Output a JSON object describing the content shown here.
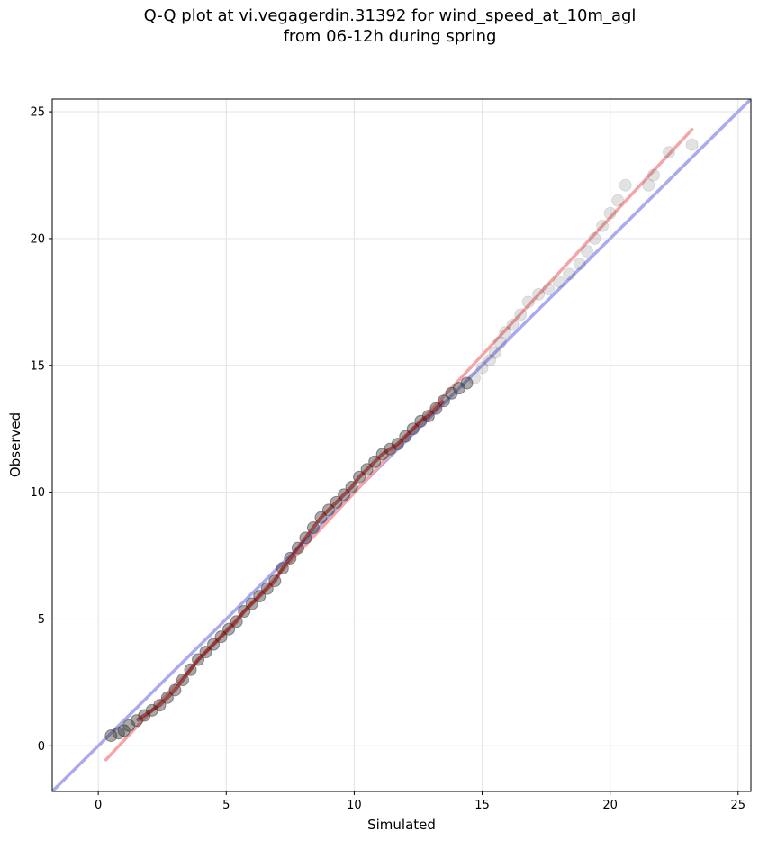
{
  "chart_data": {
    "type": "scatter",
    "title_line1": "Q-Q plot at vi.vegagerdin.31392 for wind_speed_at_10m_agl",
    "title_line2": "from 06-12h during spring",
    "xlabel": "Simulated",
    "ylabel": "Observed",
    "xlim": [
      -1.8,
      25.5
    ],
    "ylim": [
      -1.8,
      25.5
    ],
    "xticks": [
      0,
      5,
      10,
      15,
      20,
      25
    ],
    "yticks": [
      0,
      5,
      10,
      15,
      20,
      25
    ],
    "grid": true,
    "colors": {
      "points": "#333333",
      "identity_line": "#aaaaf0",
      "fit_line": "#f4a6a6",
      "dense_core": "#8b0000"
    },
    "identity_line": {
      "x": [
        -1.8,
        25.5
      ],
      "y": [
        -1.8,
        25.5
      ]
    },
    "fit_line": {
      "x": [
        0.3,
        23.2
      ],
      "y": [
        -0.55,
        24.3
      ]
    },
    "quantile_points": [
      [
        0.5,
        0.4
      ],
      [
        0.8,
        0.5
      ],
      [
        1.0,
        0.6
      ],
      [
        1.2,
        0.8
      ],
      [
        1.5,
        1.0
      ],
      [
        1.8,
        1.2
      ],
      [
        2.1,
        1.4
      ],
      [
        2.4,
        1.6
      ],
      [
        2.7,
        1.9
      ],
      [
        3.0,
        2.2
      ],
      [
        3.3,
        2.6
      ],
      [
        3.6,
        3.0
      ],
      [
        3.9,
        3.4
      ],
      [
        4.2,
        3.7
      ],
      [
        4.5,
        4.0
      ],
      [
        4.8,
        4.3
      ],
      [
        5.1,
        4.6
      ],
      [
        5.4,
        4.9
      ],
      [
        5.7,
        5.3
      ],
      [
        6.0,
        5.6
      ],
      [
        6.3,
        5.9
      ],
      [
        6.6,
        6.2
      ],
      [
        6.9,
        6.5
      ],
      [
        7.2,
        7.0
      ],
      [
        7.5,
        7.4
      ],
      [
        7.8,
        7.8
      ],
      [
        8.1,
        8.2
      ],
      [
        8.4,
        8.6
      ],
      [
        8.7,
        9.0
      ],
      [
        9.0,
        9.3
      ],
      [
        9.3,
        9.6
      ],
      [
        9.6,
        9.9
      ],
      [
        9.9,
        10.2
      ],
      [
        10.2,
        10.6
      ],
      [
        10.5,
        10.9
      ],
      [
        10.8,
        11.2
      ],
      [
        11.1,
        11.5
      ],
      [
        11.4,
        11.7
      ],
      [
        11.7,
        11.9
      ],
      [
        12.0,
        12.2
      ],
      [
        12.3,
        12.5
      ],
      [
        12.6,
        12.8
      ],
      [
        12.9,
        13.0
      ],
      [
        13.2,
        13.3
      ],
      [
        13.5,
        13.6
      ],
      [
        13.8,
        13.9
      ],
      [
        14.1,
        14.1
      ],
      [
        14.4,
        14.3
      ],
      [
        14.7,
        14.5
      ],
      [
        15.0,
        14.9
      ],
      [
        15.3,
        15.2
      ],
      [
        15.5,
        15.5
      ],
      [
        15.7,
        15.9
      ],
      [
        15.9,
        16.3
      ],
      [
        16.2,
        16.6
      ],
      [
        16.5,
        17.0
      ],
      [
        16.8,
        17.5
      ],
      [
        17.2,
        17.8
      ],
      [
        17.6,
        18.0
      ],
      [
        18.0,
        18.3
      ],
      [
        18.4,
        18.6
      ],
      [
        18.8,
        19.0
      ],
      [
        19.1,
        19.5
      ],
      [
        19.4,
        20.0
      ],
      [
        19.7,
        20.5
      ],
      [
        20.0,
        21.0
      ],
      [
        20.3,
        21.5
      ],
      [
        20.6,
        22.1
      ],
      [
        21.5,
        22.1
      ],
      [
        21.7,
        22.5
      ],
      [
        22.3,
        23.4
      ],
      [
        23.2,
        23.7
      ]
    ]
  }
}
